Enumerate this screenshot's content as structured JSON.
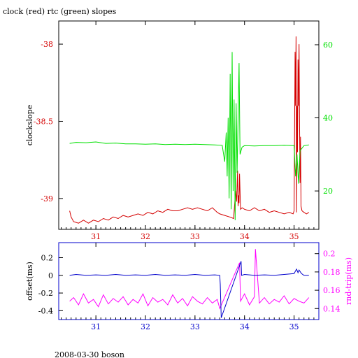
{
  "title": "clock (red) rtc (green) slopes",
  "footer": "2008-03-30 boson",
  "colors": {
    "clock": "#d40000",
    "rtc": "#00e000",
    "offset": "#0000cc",
    "rndtrip": "#ff00ff",
    "frame": "#000000"
  },
  "chart_data": [
    {
      "type": "line",
      "title": "clock (red) rtc (green) slopes",
      "xlabel": "",
      "ylabel": "clockslope",
      "y2label": "",
      "xlim": [
        30.25,
        35.5
      ],
      "ylim": [
        -39.2,
        -37.85
      ],
      "y2lim": [
        9.5,
        66.5
      ],
      "xticks": [
        31,
        32,
        33,
        34,
        35
      ],
      "yticks": [
        -38,
        -38.5,
        -39
      ],
      "y2ticks": [
        20,
        40,
        60
      ],
      "series": [
        {
          "color": "#d40000",
          "axis": "left",
          "x": [
            30.47,
            30.5,
            30.55,
            30.65,
            30.75,
            30.85,
            30.95,
            31.05,
            31.15,
            31.25,
            31.35,
            31.45,
            31.55,
            31.65,
            31.75,
            31.85,
            31.95,
            32.05,
            32.15,
            32.25,
            32.35,
            32.45,
            32.55,
            32.65,
            32.75,
            32.85,
            32.95,
            33.05,
            33.15,
            33.25,
            33.35,
            33.45,
            33.5,
            33.6,
            33.7,
            33.78,
            33.82,
            33.84,
            33.86,
            33.87,
            33.88,
            33.89,
            33.9,
            33.92,
            33.95,
            34.0,
            34.1,
            34.2,
            34.3,
            34.4,
            34.5,
            34.6,
            34.7,
            34.8,
            34.9,
            34.98,
            35.0,
            35.02,
            35.03,
            35.04,
            35.05,
            35.06,
            35.07,
            35.08,
            35.09,
            35.1,
            35.11,
            35.12,
            35.13,
            35.14,
            35.16,
            35.2,
            35.25,
            35.3
          ],
          "y": [
            -39.08,
            -39.12,
            -39.15,
            -39.16,
            -39.14,
            -39.16,
            -39.14,
            -39.15,
            -39.13,
            -39.14,
            -39.12,
            -39.13,
            -39.11,
            -39.12,
            -39.11,
            -39.1,
            -39.11,
            -39.09,
            -39.1,
            -39.08,
            -39.09,
            -39.07,
            -39.08,
            -39.08,
            -39.07,
            -39.06,
            -39.07,
            -39.06,
            -39.07,
            -39.08,
            -39.06,
            -39.09,
            -39.1,
            -39.11,
            -39.12,
            -39.13,
            -38.95,
            -39.02,
            -38.82,
            -39.05,
            -38.98,
            -39.03,
            -38.84,
            -39.07,
            -39.06,
            -39.07,
            -39.08,
            -39.06,
            -39.08,
            -39.07,
            -39.09,
            -39.08,
            -39.09,
            -39.1,
            -39.09,
            -39.1,
            -39.08,
            -38.05,
            -38.4,
            -37.95,
            -39.09,
            -38.4,
            -38.7,
            -38.1,
            -38.4,
            -38.0,
            -38.5,
            -38.9,
            -38.6,
            -39.05,
            -39.08,
            -39.09,
            -39.1,
            -39.09
          ]
        },
        {
          "color": "#00e000",
          "axis": "right",
          "x": [
            30.47,
            30.6,
            30.8,
            31.0,
            31.2,
            31.4,
            31.6,
            31.8,
            32.0,
            32.2,
            32.4,
            32.6,
            32.8,
            33.0,
            33.2,
            33.4,
            33.55,
            33.6,
            33.63,
            33.65,
            33.67,
            33.69,
            33.71,
            33.73,
            33.75,
            33.77,
            33.79,
            33.81,
            33.83,
            33.85,
            33.87,
            33.89,
            33.91,
            33.95,
            34.0,
            34.2,
            34.4,
            34.6,
            34.8,
            34.98,
            35.0,
            35.03,
            35.06,
            35.09,
            35.12,
            35.2,
            35.3
          ],
          "y": [
            33.0,
            33.3,
            33.2,
            33.4,
            33.0,
            33.1,
            32.9,
            32.9,
            32.8,
            32.9,
            32.7,
            32.8,
            32.7,
            32.8,
            32.7,
            32.6,
            32.5,
            28.0,
            36.0,
            24.0,
            40.0,
            18.0,
            52.0,
            15.0,
            58.0,
            20.0,
            45.0,
            12.0,
            44.0,
            25.0,
            40.0,
            55.0,
            30.0,
            32.0,
            32.4,
            32.3,
            32.4,
            32.4,
            32.5,
            32.4,
            32.5,
            24.0,
            30.0,
            22.0,
            31.0,
            32.4,
            32.6
          ]
        }
      ]
    },
    {
      "type": "line",
      "xlabel": "",
      "ylabel": "offset(ms)",
      "y2label": "rnd-trip(ms)",
      "xlim": [
        30.25,
        35.5
      ],
      "ylim": [
        -0.5,
        0.37
      ],
      "y2lim": [
        0.128,
        0.212
      ],
      "xticks": [
        31,
        32,
        33,
        34,
        35
      ],
      "yticks": [
        0.2,
        0,
        -0.2,
        -0.4
      ],
      "y2ticks": [
        0.2,
        0.18,
        0.16,
        0.14
      ],
      "series": [
        {
          "color": "#ff00ff",
          "axis": "right",
          "x": [
            30.47,
            30.55,
            30.65,
            30.75,
            30.85,
            30.95,
            31.05,
            31.15,
            31.25,
            31.35,
            31.45,
            31.55,
            31.65,
            31.75,
            31.85,
            31.95,
            32.05,
            32.15,
            32.25,
            32.35,
            32.45,
            32.55,
            32.65,
            32.75,
            32.85,
            32.95,
            33.05,
            33.15,
            33.25,
            33.35,
            33.45,
            33.5,
            33.9,
            33.92,
            34.0,
            34.1,
            34.2,
            34.22,
            34.3,
            34.4,
            34.5,
            34.6,
            34.7,
            34.8,
            34.9,
            35.0,
            35.1,
            35.2,
            35.3
          ],
          "y": [
            0.148,
            0.152,
            0.144,
            0.156,
            0.146,
            0.15,
            0.142,
            0.155,
            0.145,
            0.151,
            0.147,
            0.153,
            0.144,
            0.15,
            0.146,
            0.156,
            0.143,
            0.152,
            0.147,
            0.15,
            0.144,
            0.155,
            0.146,
            0.151,
            0.143,
            0.153,
            0.148,
            0.145,
            0.152,
            0.146,
            0.15,
            0.14,
            0.19,
            0.148,
            0.156,
            0.144,
            0.153,
            0.205,
            0.146,
            0.152,
            0.145,
            0.15,
            0.147,
            0.154,
            0.145,
            0.151,
            0.148,
            0.146,
            0.152
          ]
        },
        {
          "color": "#0000cc",
          "axis": "left",
          "x": [
            30.47,
            30.6,
            30.8,
            31.0,
            31.2,
            31.4,
            31.6,
            31.8,
            32.0,
            32.2,
            32.4,
            32.6,
            32.8,
            33.0,
            33.2,
            33.4,
            33.5,
            33.51,
            33.53,
            33.93,
            33.94,
            34.0,
            34.2,
            34.4,
            34.6,
            34.8,
            35.0,
            35.05,
            35.08,
            35.1,
            35.15,
            35.2,
            35.3
          ],
          "y": [
            0.0,
            0.01,
            0.0,
            0.005,
            0.0,
            0.01,
            0.0,
            0.005,
            0.0,
            0.01,
            0.0,
            0.005,
            0.0,
            0.01,
            0.0,
            0.005,
            0.0,
            -0.1,
            -0.48,
            0.16,
            0.0,
            0.01,
            0.0,
            0.005,
            0.0,
            0.01,
            0.02,
            0.07,
            0.03,
            0.06,
            0.02,
            0.0,
            0.0
          ]
        }
      ]
    }
  ]
}
